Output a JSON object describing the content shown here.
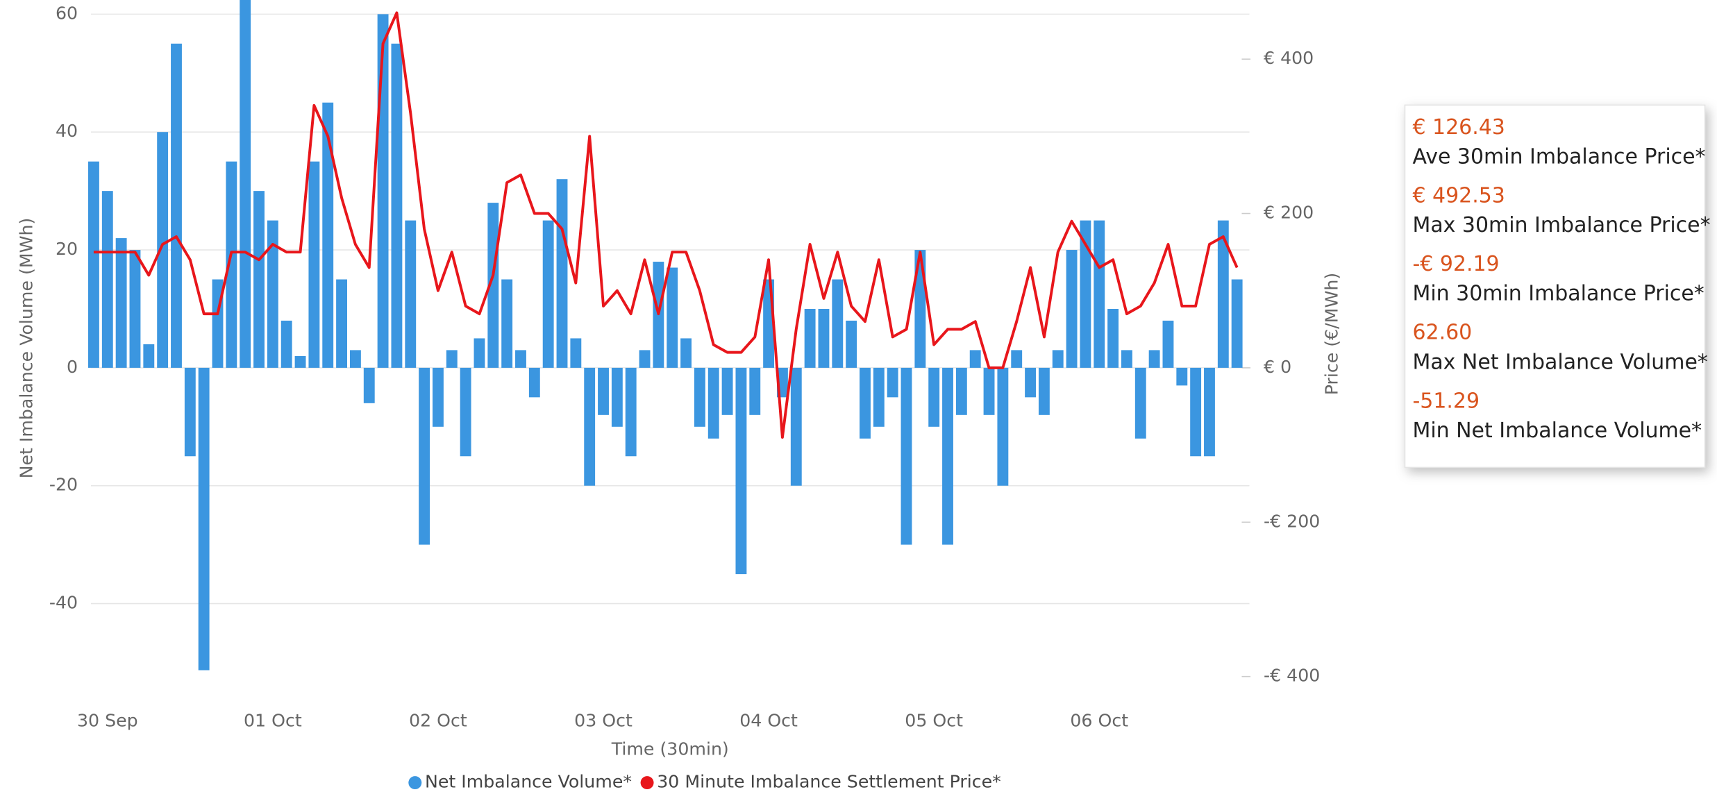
{
  "chart_data": {
    "type": "bar",
    "x_label": "Time (30min)",
    "y_label": "Net Imbalance Volume (MWh)",
    "y2_label": "Price (€/MWh)",
    "x": [
      -2,
      0,
      2,
      4,
      6,
      8,
      10,
      12,
      14,
      16,
      18,
      20,
      22,
      24,
      26,
      28,
      30,
      32,
      34,
      36,
      38,
      40,
      42,
      44,
      46,
      48,
      50,
      52,
      54,
      56,
      58,
      60,
      62,
      64,
      66,
      68,
      70,
      72,
      74,
      76,
      78,
      80,
      82,
      84,
      86,
      88,
      90,
      92,
      94,
      96,
      98,
      100,
      102,
      104,
      106,
      108,
      110,
      112,
      114,
      116,
      118,
      120,
      122,
      124,
      126,
      128,
      130,
      132,
      134,
      136,
      138,
      140,
      142,
      144,
      146,
      148,
      150,
      152,
      154,
      156,
      158,
      160,
      162,
      164
    ],
    "series": [
      {
        "name": "Net Imbalance Volume*",
        "type": "bar",
        "color": "#3b96e0",
        "values": [
          35,
          30,
          22,
          20,
          4,
          40,
          55,
          -15,
          -51.3,
          15,
          35,
          62.6,
          30,
          25,
          8,
          2,
          35,
          45,
          15,
          3,
          -6,
          60,
          55,
          25,
          -30,
          -10,
          3,
          -15,
          5,
          28,
          15,
          3,
          -5,
          25,
          32,
          5,
          -20,
          -8,
          -10,
          -15,
          3,
          18,
          17,
          5,
          -10,
          -12,
          -8,
          -35,
          -8,
          15,
          -5,
          -20,
          10,
          10,
          15,
          8,
          -12,
          -10,
          -5,
          -30,
          20,
          -10,
          -30,
          -8,
          3,
          -8,
          -20,
          3,
          -5,
          -8,
          3,
          20,
          25,
          25,
          10,
          3,
          -12,
          3,
          8,
          -3,
          -15,
          -15,
          25,
          15
        ]
      },
      {
        "name": "30 Minute Imbalance Settlement Price*",
        "type": "line",
        "axis": "y2",
        "color": "#e8161b",
        "values": [
          150,
          150,
          150,
          150,
          120,
          160,
          170,
          140,
          70,
          70,
          150,
          150,
          140,
          160,
          150,
          150,
          340,
          300,
          220,
          160,
          130,
          420,
          460,
          330,
          180,
          100,
          150,
          80,
          70,
          120,
          240,
          250,
          200,
          200,
          180,
          110,
          300,
          80,
          100,
          70,
          140,
          70,
          150,
          150,
          100,
          30,
          20,
          20,
          40,
          140,
          -90,
          50,
          160,
          90,
          150,
          80,
          60,
          140,
          40,
          50,
          150,
          30,
          50,
          50,
          60,
          0,
          0,
          60,
          130,
          40,
          150,
          190,
          160,
          130,
          140,
          70,
          80,
          110,
          160,
          80,
          80,
          160,
          170,
          130
        ]
      }
    ],
    "xlim": [
      -2.4,
      165.8
    ],
    "xticks": [
      {
        "value": 0,
        "label": "30 Sep"
      },
      {
        "value": 24,
        "label": "01 Oct"
      },
      {
        "value": 48,
        "label": "02 Oct"
      },
      {
        "value": 72,
        "label": "03 Oct"
      },
      {
        "value": 96,
        "label": "04 Oct"
      },
      {
        "value": 120,
        "label": "05 Oct"
      },
      {
        "value": 144,
        "label": "06 Oct"
      }
    ],
    "ylim": [
      -54.6,
      62.4
    ],
    "yticks": [
      60,
      40,
      20,
      0,
      -20,
      -40
    ],
    "y2lim": [
      -417,
      476.6
    ],
    "y2ticks": [
      {
        "value": 400,
        "label": "€ 400"
      },
      {
        "value": 200,
        "label": "€ 200"
      },
      {
        "value": 0,
        "label": "€ 0"
      },
      {
        "value": -200,
        "label": "-€ 200"
      },
      {
        "value": -400,
        "label": "-€ 400"
      }
    ],
    "grid": true,
    "legend": "bottom",
    "stats": [
      {
        "value": "€ 126.43",
        "label": "Ave 30min Imbalance Price*"
      },
      {
        "value": "€ 492.53",
        "label": "Max 30min Imbalance Price*"
      },
      {
        "value": "-€ 92.19",
        "label": "Min 30min Imbalance Price*"
      },
      {
        "value": "62.60",
        "label": "Max Net Imbalance Volume*"
      },
      {
        "value": "-51.29",
        "label": "Min Net Imbalance Volume*"
      }
    ]
  }
}
